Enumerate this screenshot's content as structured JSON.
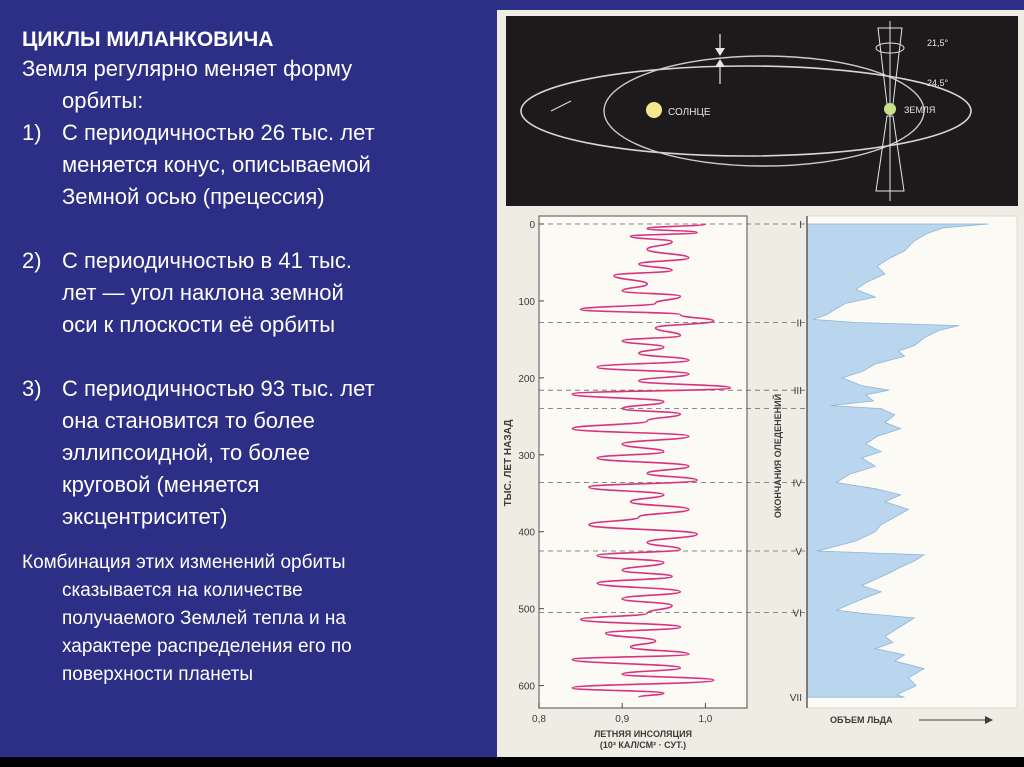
{
  "text": {
    "title": "ЦИКЛЫ МИЛАНКОВИЧА",
    "intro_line1": "Земля  регулярно меняет форму",
    "intro_line2": "орбиты:",
    "items": [
      {
        "num": "1)",
        "lines": [
          "С периодичностью 26 тыс. лет",
          "меняется конус, описываемой",
          "Земной осью (прецессия)"
        ]
      },
      {
        "num": "2)",
        "lines": [
          "С периодичностью в 41 тыс.",
          "лет — угол наклона земной",
          "оси к плоскости её орбиты"
        ]
      },
      {
        "num": "3)",
        "lines": [
          "С периодичностью 93 тыс. лет",
          "она становится то более",
          "эллипсоидной, то более",
          "круговой (меняется",
          "эксцентриситет)"
        ]
      }
    ],
    "final_lines": [
      "Комбинация этих изменений орбиты",
      "сказывается на количестве",
      "получаемого Землей тепла и на",
      "характере распределения его по",
      "поверхности планеты"
    ]
  },
  "orbit_diagram": {
    "sun_label": "СОЛНЦЕ",
    "earth_label": "ЗЕМЛЯ",
    "angle_min": "21,5°",
    "angle_max": "24,5°"
  },
  "chart_data": [
    {
      "type": "line",
      "y_axis_label": "ТЫС. ЛЕТ НАЗАД",
      "y_ticks": [
        "0",
        "100",
        "200",
        "300",
        "400",
        "500",
        "600"
      ],
      "x_ticks": [
        "0,8",
        "0,9",
        "1,0"
      ],
      "x_label_line1": "ЛЕТНЯЯ ИНСОЛЯЦИЯ",
      "x_label_line2": "(10³ КАЛ/СМ² · СУТ.)",
      "xlim": [
        0.8,
        1.05
      ],
      "ylim": [
        0,
        620
      ],
      "series": [
        {
          "color": "#d9327e",
          "points": [
            [
              0,
              1.0
            ],
            [
              6,
              0.93
            ],
            [
              11,
              0.99
            ],
            [
              16,
              0.91
            ],
            [
              23,
              0.96
            ],
            [
              33,
              0.93
            ],
            [
              44,
              0.98
            ],
            [
              52,
              0.92
            ],
            [
              60,
              0.96
            ],
            [
              67,
              0.89
            ],
            [
              78,
              0.93
            ],
            [
              87,
              0.9
            ],
            [
              94,
              0.97
            ],
            [
              103,
              0.94
            ],
            [
              111,
              0.85
            ],
            [
              118,
              0.97
            ],
            [
              126,
              1.01
            ],
            [
              135,
              0.94
            ],
            [
              145,
              0.97
            ],
            [
              152,
              0.9
            ],
            [
              160,
              0.95
            ],
            [
              168,
              0.92
            ],
            [
              177,
              0.98
            ],
            [
              186,
              0.87
            ],
            [
              195,
              0.98
            ],
            [
              204,
              0.92
            ],
            [
              213,
              1.03
            ],
            [
              221,
              0.84
            ],
            [
              231,
              0.95
            ],
            [
              240,
              0.9
            ],
            [
              247,
              0.97
            ],
            [
              256,
              0.93
            ],
            [
              266,
              0.84
            ],
            [
              276,
              0.98
            ],
            [
              286,
              0.9
            ],
            [
              296,
              0.95
            ],
            [
              304,
              0.87
            ],
            [
              315,
              0.98
            ],
            [
              324,
              0.93
            ],
            [
              333,
              0.99
            ],
            [
              342,
              0.86
            ],
            [
              352,
              0.95
            ],
            [
              361,
              0.91
            ],
            [
              371,
              0.98
            ],
            [
              381,
              0.92
            ],
            [
              391,
              0.86
            ],
            [
              403,
              0.99
            ],
            [
              414,
              0.93
            ],
            [
              423,
              0.97
            ],
            [
              431,
              0.87
            ],
            [
              440,
              0.95
            ],
            [
              450,
              0.9
            ],
            [
              458,
              0.96
            ],
            [
              467,
              0.87
            ],
            [
              478,
              0.97
            ],
            [
              487,
              0.9
            ],
            [
              496,
              0.96
            ],
            [
              506,
              0.93
            ],
            [
              514,
              0.85
            ],
            [
              524,
              0.97
            ],
            [
              532,
              0.88
            ],
            [
              542,
              0.94
            ],
            [
              550,
              0.91
            ],
            [
              559,
              0.98
            ],
            [
              566,
              0.84
            ],
            [
              577,
              0.97
            ],
            [
              585,
              0.9
            ],
            [
              593,
              1.01
            ],
            [
              603,
              0.84
            ],
            [
              610,
              0.95
            ],
            [
              615,
              0.92
            ]
          ]
        }
      ],
      "dashed_lines_at": [
        0,
        128,
        216,
        240,
        336,
        425,
        505
      ]
    },
    {
      "type": "area",
      "y_axis_label": "ОКОНЧАНИЯ ОЛЕДЕНЕНИЙ",
      "x_label": "ОБЪЕМ ЛЬДА",
      "roman_markers": [
        {
          "label": "I",
          "value": 0
        },
        {
          "label": "II",
          "value": 128
        },
        {
          "label": "III",
          "value": 216
        },
        {
          "label": "IV",
          "value": 336
        },
        {
          "label": "V",
          "value": 425
        },
        {
          "label": "VI",
          "value": 505
        },
        {
          "label": "VII",
          "value": 615
        }
      ],
      "xlim": [
        0,
        1
      ],
      "ylim": [
        0,
        620
      ],
      "color": "#b9d6ee",
      "series": [
        {
          "points": [
            [
              0,
              0.93
            ],
            [
              5,
              0.7
            ],
            [
              12,
              0.62
            ],
            [
              22,
              0.55
            ],
            [
              35,
              0.5
            ],
            [
              45,
              0.42
            ],
            [
              55,
              0.36
            ],
            [
              65,
              0.4
            ],
            [
              75,
              0.31
            ],
            [
              85,
              0.25
            ],
            [
              95,
              0.35
            ],
            [
              103,
              0.2
            ],
            [
              110,
              0.15
            ],
            [
              118,
              0.1
            ],
            [
              124,
              0.03
            ],
            [
              128,
              0.25
            ],
            [
              132,
              0.78
            ],
            [
              138,
              0.68
            ],
            [
              148,
              0.6
            ],
            [
              158,
              0.55
            ],
            [
              165,
              0.47
            ],
            [
              172,
              0.5
            ],
            [
              182,
              0.35
            ],
            [
              192,
              0.28
            ],
            [
              200,
              0.18
            ],
            [
              210,
              0.28
            ],
            [
              216,
              0.42
            ],
            [
              222,
              0.3
            ],
            [
              230,
              0.34
            ],
            [
              236,
              0.12
            ],
            [
              240,
              0.38
            ],
            [
              248,
              0.45
            ],
            [
              258,
              0.4
            ],
            [
              266,
              0.48
            ],
            [
              276,
              0.36
            ],
            [
              286,
              0.3
            ],
            [
              296,
              0.38
            ],
            [
              304,
              0.28
            ],
            [
              315,
              0.35
            ],
            [
              325,
              0.22
            ],
            [
              336,
              0.15
            ],
            [
              344,
              0.35
            ],
            [
              352,
              0.48
            ],
            [
              361,
              0.4
            ],
            [
              371,
              0.52
            ],
            [
              381,
              0.45
            ],
            [
              391,
              0.38
            ],
            [
              400,
              0.35
            ],
            [
              412,
              0.25
            ],
            [
              422,
              0.1
            ],
            [
              425,
              0.05
            ],
            [
              430,
              0.6
            ],
            [
              438,
              0.55
            ],
            [
              446,
              0.48
            ],
            [
              454,
              0.42
            ],
            [
              462,
              0.35
            ],
            [
              470,
              0.28
            ],
            [
              478,
              0.38
            ],
            [
              486,
              0.3
            ],
            [
              494,
              0.22
            ],
            [
              502,
              0.15
            ],
            [
              506,
              0.28
            ],
            [
              512,
              0.55
            ],
            [
              520,
              0.5
            ],
            [
              528,
              0.45
            ],
            [
              536,
              0.4
            ],
            [
              544,
              0.44
            ],
            [
              552,
              0.35
            ],
            [
              560,
              0.5
            ],
            [
              568,
              0.45
            ],
            [
              578,
              0.6
            ],
            [
              590,
              0.52
            ],
            [
              600,
              0.56
            ],
            [
              612,
              0.46
            ],
            [
              615,
              0.5
            ]
          ]
        }
      ]
    }
  ]
}
